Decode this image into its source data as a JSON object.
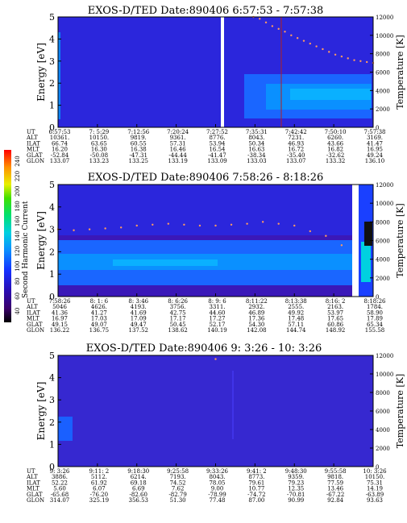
{
  "figure": {
    "colorbar": {
      "label": "Second Harmonic Current",
      "ticks": [
        "40",
        "60",
        "80",
        "100",
        "120",
        "140",
        "160",
        "180",
        "200",
        "220",
        "240"
      ]
    },
    "ylabel_left": "Energy [eV]",
    "ylabel_right": "Temperature [K]",
    "row_labels": [
      "UT",
      "ALT",
      "ILAT",
      "MLT",
      "GLAT",
      "GLON"
    ]
  },
  "chart_data": [
    {
      "type": "heatmap",
      "title": "EXOS-D/TED   Date:890406  6:57:53 - 7:57:38",
      "ylabel": "Energy [eV]",
      "ylabel_right": "Temperature [K]",
      "ylim": [
        0,
        5
      ],
      "ylim_right": [
        0,
        12000
      ],
      "yticks": [
        "0",
        "1",
        "2",
        "3",
        "4",
        "5"
      ],
      "yticks_right": [
        "0",
        "2000",
        "4000",
        "6000",
        "8000",
        "10000",
        "12000"
      ],
      "columns": [
        {
          "UT": "6:57:53",
          "ALT": "10361.",
          "ILAT": "66.74",
          "MLT": "16.20",
          "GLAT": "-52.84",
          "GLON": "133.07"
        },
        {
          "UT": "7: 5:29",
          "ALT": "10150.",
          "ILAT": "63.65",
          "MLT": "16.30",
          "GLAT": "-50.08",
          "GLON": "133.23"
        },
        {
          "UT": "7:12:56",
          "ALT": "9819.",
          "ILAT": "60.55",
          "MLT": "16.38",
          "GLAT": "-47.31",
          "GLON": "133.25"
        },
        {
          "UT": "7:20:24",
          "ALT": "9361.",
          "ILAT": "57.31",
          "MLT": "16.46",
          "GLAT": "-44.44",
          "GLON": "133.19"
        },
        {
          "UT": "7:27:52",
          "ALT": "8776.",
          "ILAT": "53.94",
          "MLT": "16.54",
          "GLAT": "-41.47",
          "GLON": "133.09"
        },
        {
          "UT": "7:35:31",
          "ALT": "8043.",
          "ILAT": "50.34",
          "MLT": "16.63",
          "GLAT": "-38.34",
          "GLON": "133.03"
        },
        {
          "UT": "7:42:42",
          "ALT": "7231.",
          "ILAT": "46.93",
          "MLT": "16.72",
          "GLAT": "-35.40",
          "GLON": "133.07"
        },
        {
          "UT": "7:50:10",
          "ALT": "6260.",
          "ILAT": "43.66",
          "MLT": "16.82",
          "GLAT": "-32.62",
          "GLON": "133.32"
        },
        {
          "UT": "7:57:38",
          "ALT": "3169.",
          "ILAT": "41.47",
          "MLT": "16.95",
          "GLAT": "49.24",
          "GLON": "136.10"
        }
      ],
      "temperature_trace": {
        "x": [
          0.62,
          0.64,
          0.66,
          0.68,
          0.7,
          0.72,
          0.74,
          0.76,
          0.78,
          0.8,
          0.82,
          0.84,
          0.86,
          0.88,
          0.9,
          0.92,
          0.94,
          0.96,
          0.98,
          1.0
        ],
        "y": [
          12000,
          11800,
          11400,
          11000,
          10700,
          10400,
          10000,
          9700,
          9400,
          9100,
          8800,
          8500,
          8200,
          7900,
          7700,
          7500,
          7300,
          7200,
          7100,
          7000
        ]
      }
    },
    {
      "type": "heatmap",
      "title": "EXOS-D/TED   Date:890406  7:58:26 - 8:18:26",
      "ylabel": "Energy [eV]",
      "ylabel_right": "Temperature [K]",
      "ylim": [
        0,
        5
      ],
      "ylim_right": [
        0,
        12000
      ],
      "yticks": [
        "0",
        "1",
        "2",
        "3",
        "4",
        "5"
      ],
      "yticks_right": [
        "0",
        "2000",
        "4000",
        "6000",
        "8000",
        "10000",
        "12000"
      ],
      "columns": [
        {
          "UT": "7:58:26",
          "ALT": "5046",
          "ILAT": "41.36",
          "MLT": "16.97",
          "GLAT": "49.15",
          "GLON": "136.22"
        },
        {
          "UT": "8: 1: 6",
          "ALT": "4626.",
          "ILAT": "41.27",
          "MLT": "17.03",
          "GLAT": "49.07",
          "GLON": "136.75"
        },
        {
          "UT": "8: 3:46",
          "ALT": "4193.",
          "ILAT": "41.69",
          "MLT": "17.09",
          "GLAT": "49.47",
          "GLON": "137.52"
        },
        {
          "UT": "8: 6:26",
          "ALT": "3756.",
          "ILAT": "42.75",
          "MLT": "17.17",
          "GLAT": "50.45",
          "GLON": "138.62"
        },
        {
          "UT": "8: 9: 6",
          "ALT": "3311.",
          "ILAT": "44.60",
          "MLT": "17.27",
          "GLAT": "52.17",
          "GLON": "140.19"
        },
        {
          "UT": "8:11:22",
          "ALT": "2932.",
          "ILAT": "46.89",
          "MLT": "17.36",
          "GLAT": "54.30",
          "GLON": "142.08"
        },
        {
          "UT": "8:13:38",
          "ALT": "2555.",
          "ILAT": "49.92",
          "MLT": "17.48",
          "GLAT": "57.11",
          "GLON": "144.74"
        },
        {
          "UT": "8:16: 2",
          "ALT": "2163.",
          "ILAT": "53.97",
          "MLT": "17.65",
          "GLAT": "60.86",
          "GLON": "148.92"
        },
        {
          "UT": "8:18:26",
          "ALT": "1784.",
          "ILAT": "58.90",
          "MLT": "17.89",
          "GLAT": "65.34",
          "GLON": "155.58"
        }
      ],
      "temperature_trace": {
        "x": [
          0.0,
          0.05,
          0.1,
          0.15,
          0.2,
          0.25,
          0.3,
          0.35,
          0.4,
          0.45,
          0.5,
          0.55,
          0.6,
          0.65,
          0.7,
          0.75,
          0.8,
          0.85,
          0.9
        ],
        "y": [
          7200,
          7100,
          7200,
          7300,
          7400,
          7600,
          7700,
          7800,
          7700,
          7600,
          7600,
          7700,
          7800,
          8000,
          7800,
          7600,
          7000,
          6500,
          5500
        ]
      }
    },
    {
      "type": "heatmap",
      "title": "EXOS-D/TED   Date:890406  9: 3:26 - 10: 3:26",
      "ylabel": "Energy [eV]",
      "ylabel_right": "Temperature [K]",
      "ylim": [
        0,
        5
      ],
      "ylim_right": [
        0,
        12000
      ],
      "yticks": [
        "0",
        "1",
        "2",
        "3",
        "4",
        "5"
      ],
      "yticks_right": [
        "0",
        "2000",
        "4000",
        "6000",
        "8000",
        "10000",
        "12000"
      ],
      "columns": [
        {
          "UT": "9: 3:26",
          "ALT": "3886.",
          "ILAT": "52.22",
          "MLT": "5.60",
          "GLAT": "-65.68",
          "GLON": "314.07"
        },
        {
          "UT": "9:11: 2",
          "ALT": "5112.",
          "ILAT": "61.92",
          "MLT": "6.07",
          "GLAT": "-76.20",
          "GLON": "325.19"
        },
        {
          "UT": "9:18:30",
          "ALT": "6214.",
          "ILAT": "69.18",
          "MLT": "6.69",
          "GLAT": "-82.60",
          "GLON": "356.53"
        },
        {
          "UT": "9:25:58",
          "ALT": "7193.",
          "ILAT": "74.52",
          "MLT": "7.62",
          "GLAT": "-82.79",
          "GLON": "51.30"
        },
        {
          "UT": "9:33:26",
          "ALT": "8043.",
          "ILAT": "78.05",
          "MLT": "9.00",
          "GLAT": "-78.99",
          "GLON": "77.48"
        },
        {
          "UT": "9:41: 2",
          "ALT": "8773.",
          "ILAT": "79.61",
          "MLT": "10.77",
          "GLAT": "-74.72",
          "GLON": "87.00"
        },
        {
          "UT": "9:48:30",
          "ALT": "9359.",
          "ILAT": "79.23",
          "MLT": "12.35",
          "GLAT": "-70.81",
          "GLON": "90.99"
        },
        {
          "UT": "9:55:58",
          "ALT": "9818.",
          "ILAT": "77.59",
          "MLT": "13.46",
          "GLAT": "-67.22",
          "GLON": "92.84"
        },
        {
          "UT": "10: 3:26",
          "ALT": "10150.",
          "ILAT": "75.31",
          "MLT": "14.19",
          "GLAT": "-63.89",
          "GLON": "93.63"
        }
      ],
      "temperature_trace": {
        "x": [
          0.5
        ],
        "y": [
          11600
        ]
      }
    }
  ]
}
